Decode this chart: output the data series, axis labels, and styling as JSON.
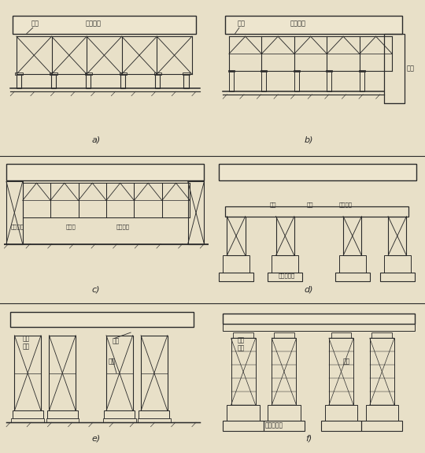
{
  "bg_color": "#e8e0c8",
  "line_color": "#2a2a2a",
  "lw": 1.0,
  "panel_labels": [
    "a)",
    "b)",
    "c)",
    "d)",
    "e)",
    "f)"
  ]
}
